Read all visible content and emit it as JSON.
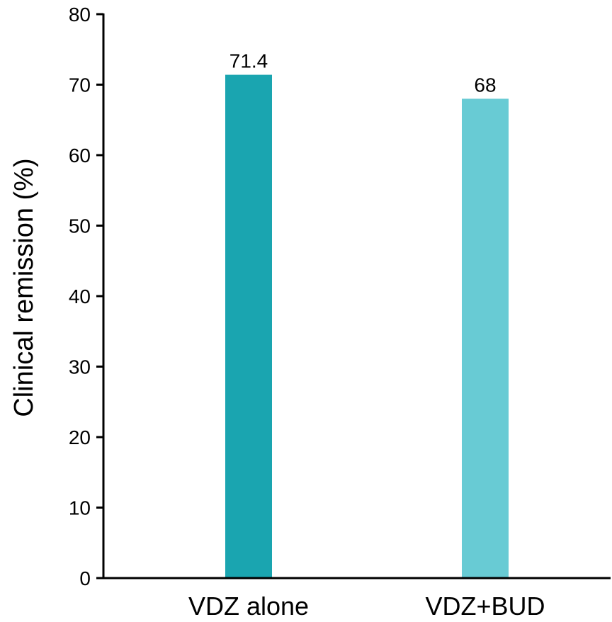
{
  "chart_data": {
    "type": "bar",
    "title": "",
    "xlabel": "",
    "ylabel": "Clinical remission (%)",
    "ylim": [
      0,
      80
    ],
    "yticks": [
      0,
      10,
      20,
      30,
      40,
      50,
      60,
      70,
      80
    ],
    "categories": [
      "VDZ alone",
      "VDZ+BUD"
    ],
    "values": [
      71.4,
      68
    ],
    "value_labels": [
      "71.4",
      "68"
    ],
    "bar_colors": [
      "#1aa5b0",
      "#68cbd4"
    ],
    "grid": false,
    "legend": "none"
  },
  "colors": {
    "axis": "#000000",
    "background": "#ffffff"
  }
}
